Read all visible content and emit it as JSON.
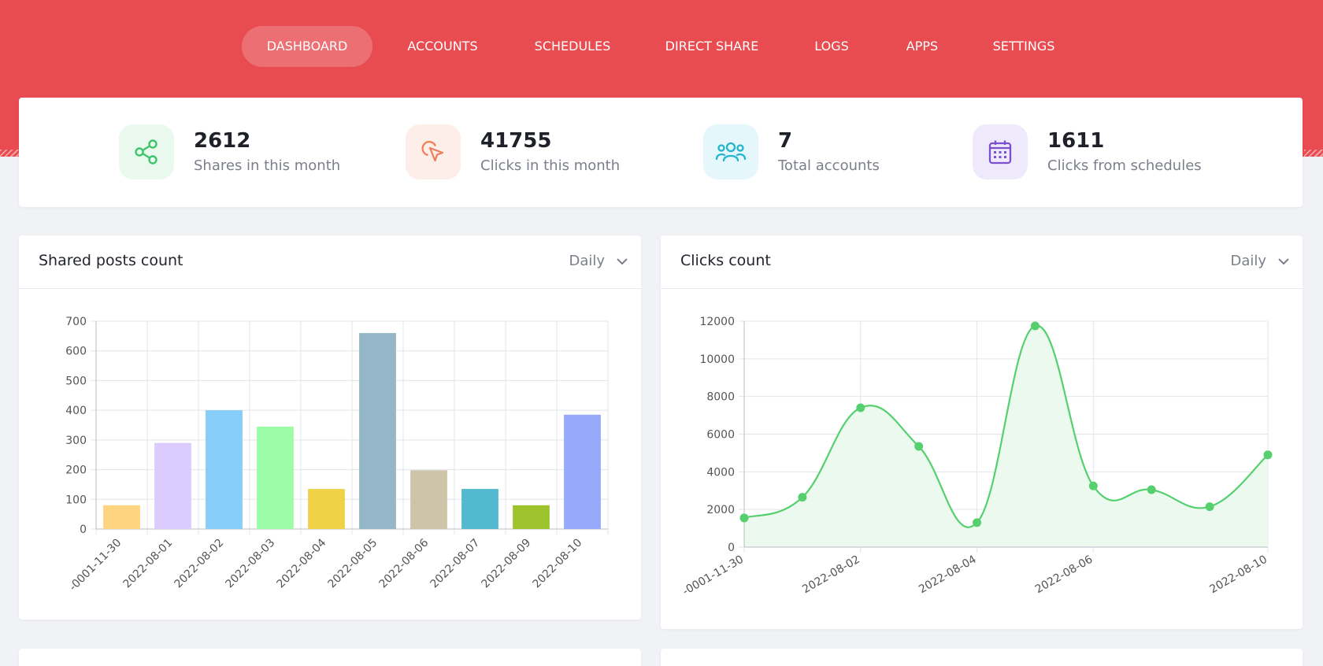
{
  "nav": {
    "items": [
      {
        "label": "DASHBOARD",
        "active": true
      },
      {
        "label": "ACCOUNTS",
        "active": false
      },
      {
        "label": "SCHEDULES",
        "active": false
      },
      {
        "label": "DIRECT SHARE",
        "active": false
      },
      {
        "label": "LOGS",
        "active": false
      },
      {
        "label": "APPS",
        "active": false
      },
      {
        "label": "SETTINGS",
        "active": false
      }
    ]
  },
  "stats": [
    {
      "value": "2612",
      "label": "Shares in this month",
      "icon": "share-icon",
      "color": "#3fc46b",
      "bg": "#e9f9ee"
    },
    {
      "value": "41755",
      "label": "Clicks in this month",
      "icon": "cursor-icon",
      "color": "#ef7d57",
      "bg": "#fdeee9"
    },
    {
      "value": "7",
      "label": "Total accounts",
      "icon": "users-icon",
      "color": "#22b5cc",
      "bg": "#e5f7fa"
    },
    {
      "value": "1611",
      "label": "Clicks from schedules",
      "icon": "calendar-icon",
      "color": "#7c4fd1",
      "bg": "#efeafb"
    }
  ],
  "panels": {
    "shared": {
      "title": "Shared posts count",
      "period": "Daily"
    },
    "clicks": {
      "title": "Clicks count",
      "period": "Daily"
    }
  },
  "chart_data": [
    {
      "type": "bar",
      "title": "Shared posts count",
      "categories": [
        "-0001-11-30",
        "2022-08-01",
        "2022-08-02",
        "2022-08-03",
        "2022-08-04",
        "2022-08-05",
        "2022-08-06",
        "2022-08-07",
        "2022-08-09",
        "2022-08-10"
      ],
      "values": [
        80,
        290,
        400,
        345,
        135,
        660,
        198,
        135,
        80,
        385
      ],
      "colors": [
        "#ffd480",
        "#dccbfd",
        "#86cdf9",
        "#9cfca8",
        "#efd247",
        "#95b6c6",
        "#cdc5a9",
        "#52b9ce",
        "#9dc42d",
        "#97a9fb"
      ],
      "yticks": [
        0,
        100,
        200,
        300,
        400,
        500,
        600,
        700
      ],
      "ylim": [
        0,
        700
      ],
      "grid": true
    },
    {
      "type": "area",
      "title": "Clicks count",
      "x": [
        "-0001-11-30",
        "2022-08-01",
        "2022-08-02",
        "2022-08-03",
        "2022-08-04",
        "2022-08-05",
        "2022-08-06",
        "2022-08-07",
        "2022-08-09",
        "2022-08-10"
      ],
      "values": [
        1550,
        2650,
        7400,
        5350,
        1300,
        11750,
        3250,
        3050,
        2150,
        4900
      ],
      "xtick_labels": [
        "-0001-11-30",
        "",
        "2022-08-02",
        "",
        "2022-08-04",
        "",
        "2022-08-06",
        "",
        "",
        "2022-08-10"
      ],
      "yticks": [
        0,
        2000,
        4000,
        6000,
        8000,
        10000,
        12000
      ],
      "ylim": [
        0,
        12000
      ],
      "color": "#56d06e",
      "fill": "#ebf9ee",
      "grid": true
    }
  ]
}
